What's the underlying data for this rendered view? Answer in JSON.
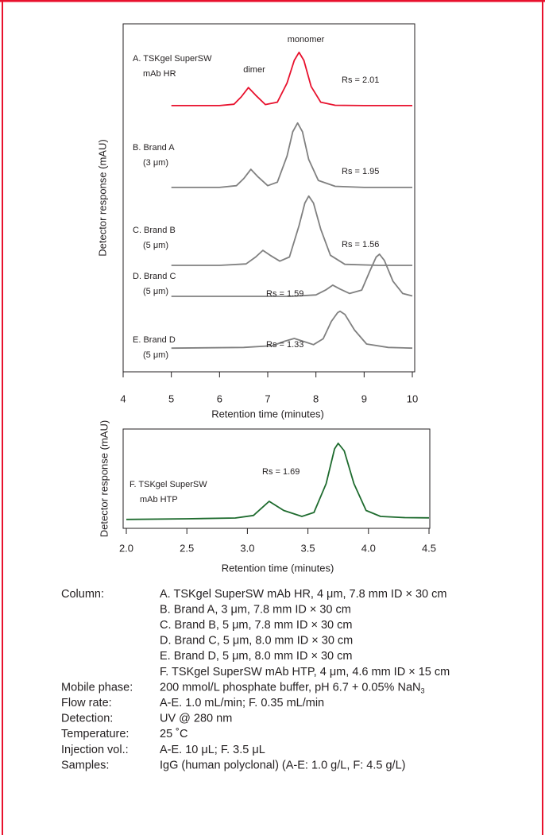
{
  "chart_data": [
    {
      "type": "line",
      "ylabel": "Detector response (mAU)",
      "xlabel": "Retention time (minutes)",
      "xlim": [
        4,
        10
      ],
      "xticks": [
        4,
        5,
        6,
        7,
        8,
        9,
        10
      ],
      "ylim": [
        0,
        100
      ],
      "annotations": [
        "monomer",
        "dimer"
      ],
      "series": [
        {
          "name": [
            "A. TSKgel SuperSW",
            "mAb HR"
          ],
          "rs": "Rs = 2.01",
          "color": "#e8112d",
          "x": [
            5.0,
            6.0,
            6.3,
            6.45,
            6.6,
            6.75,
            6.95,
            7.2,
            7.4,
            7.55,
            7.65,
            7.75,
            7.9,
            8.1,
            8.4,
            9.0,
            10.0
          ],
          "values": [
            76.5,
            76.5,
            76.9,
            79,
            81.7,
            79.5,
            76.8,
            77.5,
            83,
            89.5,
            91.8,
            89.5,
            82,
            77.5,
            76.6,
            76.5,
            76.5
          ]
        },
        {
          "name": [
            "B. Brand A",
            "(3 μm)"
          ],
          "rs": "Rs = 1.95",
          "color": "#808080",
          "x": [
            5.0,
            6.0,
            6.35,
            6.5,
            6.65,
            6.8,
            7.0,
            7.2,
            7.4,
            7.52,
            7.62,
            7.72,
            7.85,
            8.05,
            8.4,
            9.0,
            10.0
          ],
          "values": [
            53,
            53,
            53.5,
            55.5,
            58.2,
            56,
            53.5,
            54.5,
            62,
            69,
            71.5,
            69,
            61,
            55,
            53.3,
            53,
            53
          ]
        },
        {
          "name": [
            "C. Brand B",
            "(5 μm)"
          ],
          "rs": "Rs = 1.56",
          "color": "#808080",
          "x": [
            5.0,
            6.0,
            6.55,
            6.75,
            6.9,
            7.05,
            7.25,
            7.45,
            7.65,
            7.77,
            7.85,
            7.95,
            8.1,
            8.3,
            8.6,
            9.3,
            10.0
          ],
          "values": [
            30.6,
            30.6,
            31,
            33,
            34.9,
            33.5,
            31.8,
            33,
            42,
            48.5,
            50.5,
            48.5,
            41,
            33.5,
            30.9,
            30.6,
            30.6
          ]
        },
        {
          "name": [
            "D. Brand C",
            "(5 μm)"
          ],
          "rs": "Rs = 1.59",
          "color": "#808080",
          "x": [
            5.0,
            7.5,
            8.0,
            8.2,
            8.35,
            8.5,
            8.7,
            8.95,
            9.12,
            9.25,
            9.32,
            9.42,
            9.6,
            9.8,
            10.0
          ],
          "values": [
            21.7,
            21.7,
            22.1,
            23.5,
            24.9,
            23.8,
            22.5,
            23.5,
            29,
            33,
            33.8,
            32,
            26,
            22.5,
            21.8
          ]
        },
        {
          "name": [
            "E. Brand D",
            "(5 μm)"
          ],
          "rs": "Rs = 1.33",
          "color": "#808080",
          "x": [
            5.0,
            6.5,
            7.1,
            7.35,
            7.55,
            7.75,
            7.95,
            8.15,
            8.32,
            8.45,
            8.5,
            8.6,
            8.8,
            9.05,
            9.5,
            10.0
          ],
          "values": [
            6.8,
            7.0,
            7.5,
            8.8,
            9.6,
            8.7,
            7.8,
            9.5,
            14.5,
            17,
            17.4,
            16.5,
            12,
            8.0,
            7.0,
            6.8
          ]
        }
      ]
    },
    {
      "type": "line",
      "ylabel": "Detector response (mAU)",
      "xlabel": "Retention time (minutes)",
      "xlim": [
        2.0,
        4.5
      ],
      "xticks": [
        {
          "value": 2.0,
          "label": "2.0"
        },
        2.5,
        {
          "value": 3.0,
          "label": "3.0"
        },
        3.5,
        {
          "value": 4.0,
          "label": "4.0"
        },
        4.5
      ],
      "ylim": [
        0,
        100
      ],
      "series": [
        {
          "name": [
            "F. TSKgel SuperSW",
            "mAb HTP"
          ],
          "rs": "Rs = 1.69",
          "color": "#1e6b2e",
          "x": [
            2.0,
            2.5,
            2.9,
            3.05,
            3.18,
            3.3,
            3.45,
            3.55,
            3.65,
            3.72,
            3.75,
            3.8,
            3.88,
            3.98,
            4.1,
            4.3,
            4.5
          ],
          "values": [
            9,
            9.6,
            10.4,
            13,
            27.2,
            18,
            12,
            16,
            45,
            80,
            85.6,
            78,
            45,
            18,
            12,
            10.8,
            10.6
          ]
        }
      ]
    }
  ],
  "conditions": [
    {
      "label": "Column:",
      "lines": [
        "A. TSKgel SuperSW mAb HR, 4 μm, 7.8 mm ID × 30 cm",
        "B. Brand A, 3 μm, 7.8 mm ID × 30 cm",
        "C. Brand B, 5 μm, 7.8 mm ID × 30 cm",
        "D. Brand C, 5 μm, 8.0 mm ID × 30 cm",
        "E. Brand D, 5 μm, 8.0 mm ID × 30 cm",
        "F. TSKgel SuperSW mAb HTP, 4 μm, 4.6 mm ID × 15 cm"
      ]
    },
    {
      "label": "Mobile phase:",
      "lines": [
        "200 mmol/L phosphate buffer, pH 6.7 + 0.05% NaN"
      ],
      "sub": "3"
    },
    {
      "label": "Flow rate:",
      "lines": [
        "A-E. 1.0 mL/min; F. 0.35 mL/min"
      ]
    },
    {
      "label": "Detection:",
      "lines": [
        "UV @ 280 nm"
      ]
    },
    {
      "label": "Temperature:",
      "lines": [
        "25 ˚C"
      ]
    },
    {
      "label": "Injection vol.:",
      "lines": [
        "A-E. 10 μL; F. 3.5 μL"
      ]
    },
    {
      "label": "Samples:",
      "lines": [
        "IgG (human polyclonal) (A-E: 1.0 g/L, F: 4.5 g/L)"
      ]
    }
  ]
}
